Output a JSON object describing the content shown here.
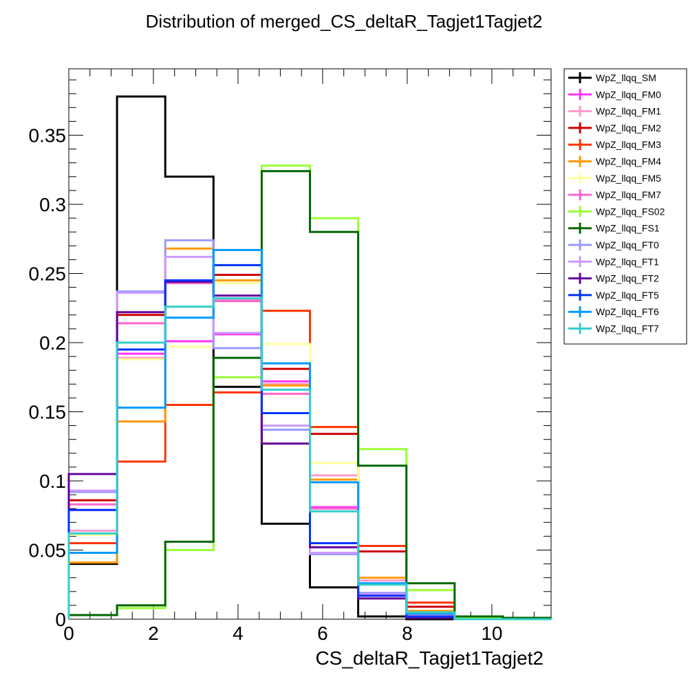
{
  "chart_data": {
    "type": "line",
    "title": "Distribution of merged_CS_deltaR_Tagjet1Tagjet2",
    "xlabel": "CS_deltaR_Tagjet1Tagjet2",
    "ylabel": "",
    "xlim": [
      0,
      11.4
    ],
    "ylim": [
      0,
      0.398
    ],
    "x_ticks": [
      0,
      2,
      4,
      6,
      8,
      10
    ],
    "x_tick_labels": [
      "0",
      "2",
      "4",
      "6",
      "8",
      "10"
    ],
    "y_ticks": [
      0,
      0.05,
      0.1,
      0.15,
      0.2,
      0.25,
      0.3,
      0.35
    ],
    "y_tick_labels": [
      "0",
      "0.05",
      "0.1",
      "0.15",
      "0.2",
      "0.25",
      "0.3",
      "0.35"
    ],
    "bin_edges": [
      0,
      1.14,
      2.28,
      3.42,
      4.56,
      5.7,
      6.84,
      7.98,
      9.12,
      10.26,
      11.4
    ],
    "legend_position": "top-right, outside plot",
    "series": [
      {
        "name": "WpZ_llqq_SM",
        "color": "#000000",
        "values": [
          0.04,
          0.378,
          0.32,
          0.168,
          0.069,
          0.023,
          0.002,
          0.0,
          0.0,
          0.0
        ]
      },
      {
        "name": "WpZ_llqq_FM0",
        "color": "#ff33ff",
        "values": [
          0.079,
          0.192,
          0.201,
          0.206,
          0.172,
          0.081,
          0.017,
          0.002,
          0.0,
          0.0
        ]
      },
      {
        "name": "WpZ_llqq_FM1",
        "color": "#ff99cc",
        "values": [
          0.064,
          0.189,
          0.197,
          0.231,
          0.17,
          0.104,
          0.028,
          0.003,
          0.0,
          0.0
        ]
      },
      {
        "name": "WpZ_llqq_FM2",
        "color": "#cc0000",
        "values": [
          0.086,
          0.22,
          0.244,
          0.249,
          0.181,
          0.134,
          0.049,
          0.009,
          0.001,
          0.0
        ]
      },
      {
        "name": "WpZ_llqq_FM3",
        "color": "#ff3300",
        "values": [
          0.055,
          0.114,
          0.155,
          0.164,
          0.223,
          0.139,
          0.053,
          0.012,
          0.001,
          0.0
        ]
      },
      {
        "name": "WpZ_llqq_FM4",
        "color": "#ff9900",
        "values": [
          0.041,
          0.143,
          0.268,
          0.245,
          0.169,
          0.101,
          0.03,
          0.006,
          0.0,
          0.0
        ]
      },
      {
        "name": "WpZ_llqq_FM5",
        "color": "#ffff99",
        "values": [
          0.061,
          0.188,
          0.197,
          0.243,
          0.199,
          0.113,
          0.025,
          0.004,
          0.0,
          0.0
        ]
      },
      {
        "name": "WpZ_llqq_FM7",
        "color": "#ff66cc",
        "values": [
          0.083,
          0.214,
          0.243,
          0.23,
          0.163,
          0.08,
          0.018,
          0.002,
          0.0,
          0.0
        ]
      },
      {
        "name": "WpZ_llqq_FS02",
        "color": "#99ff33",
        "values": [
          0.003,
          0.008,
          0.05,
          0.175,
          0.328,
          0.29,
          0.123,
          0.021,
          0.001,
          0.0
        ]
      },
      {
        "name": "WpZ_llqq_FS1",
        "color": "#006600",
        "values": [
          0.003,
          0.01,
          0.056,
          0.189,
          0.324,
          0.28,
          0.111,
          0.026,
          0.002,
          0.001
        ]
      },
      {
        "name": "WpZ_llqq_FT0",
        "color": "#9999ff",
        "values": [
          0.092,
          0.237,
          0.274,
          0.196,
          0.137,
          0.047,
          0.019,
          0.002,
          0.0,
          0.0
        ]
      },
      {
        "name": "WpZ_llqq_FT1",
        "color": "#cc99ff",
        "values": [
          0.093,
          0.236,
          0.262,
          0.207,
          0.14,
          0.048,
          0.018,
          0.002,
          0.0,
          0.0
        ]
      },
      {
        "name": "WpZ_llqq_FT2",
        "color": "#660099",
        "values": [
          0.105,
          0.222,
          0.244,
          0.234,
          0.127,
          0.052,
          0.015,
          0.001,
          0.0,
          0.0
        ]
      },
      {
        "name": "WpZ_llqq_FT5",
        "color": "#0033ff",
        "values": [
          0.079,
          0.195,
          0.245,
          0.256,
          0.149,
          0.055,
          0.017,
          0.002,
          0.0,
          0.0
        ]
      },
      {
        "name": "WpZ_llqq_FT6",
        "color": "#0099ff",
        "values": [
          0.048,
          0.153,
          0.218,
          0.267,
          0.185,
          0.099,
          0.026,
          0.004,
          0.0,
          0.0
        ]
      },
      {
        "name": "WpZ_llqq_FT7",
        "color": "#33cccc",
        "values": [
          0.062,
          0.2,
          0.226,
          0.232,
          0.166,
          0.078,
          0.025,
          0.005,
          0.0,
          0.0
        ]
      }
    ]
  }
}
